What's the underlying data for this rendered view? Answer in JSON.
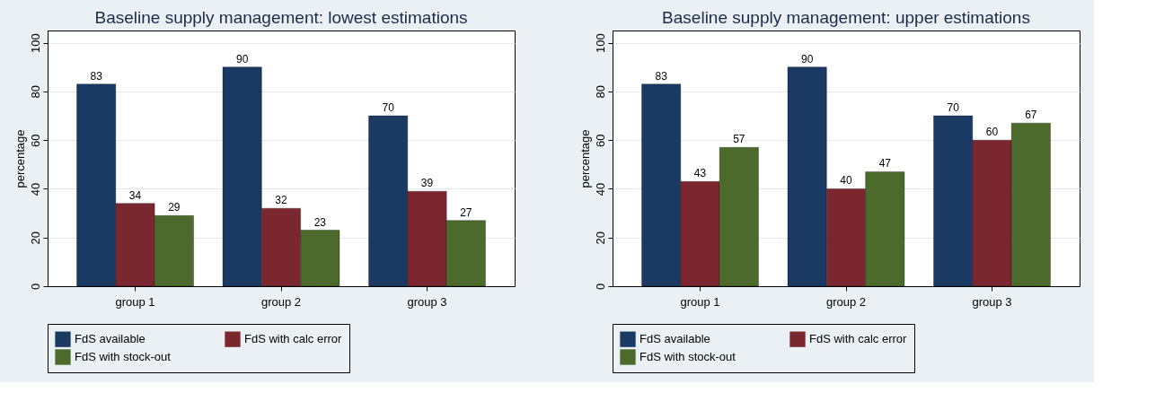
{
  "chart_data": [
    {
      "type": "bar",
      "title": "Baseline supply management: lowest estimations",
      "ylabel": "percentage",
      "categories": [
        "group 1",
        "group 2",
        "group 3"
      ],
      "series": [
        {
          "name": "FdS available",
          "color": "#1b3a63",
          "values": [
            83,
            90,
            70
          ]
        },
        {
          "name": "FdS with calc error",
          "color": "#7b2730",
          "values": [
            34,
            32,
            39
          ]
        },
        {
          "name": "FdS with stock-out",
          "color": "#4b6a2b",
          "values": [
            29,
            23,
            27
          ]
        }
      ],
      "ylim": [
        0,
        105
      ],
      "yticks": [
        0,
        20,
        40,
        60,
        80,
        100
      ],
      "grid": "y",
      "legend": "bottom",
      "data_labels": true
    },
    {
      "type": "bar",
      "title": "Baseline supply management: upper estimations",
      "ylabel": "percentage",
      "categories": [
        "group 1",
        "group 2",
        "group 3"
      ],
      "series": [
        {
          "name": "FdS available",
          "color": "#1b3a63",
          "values": [
            83,
            90,
            70
          ]
        },
        {
          "name": "FdS with calc error",
          "color": "#7b2730",
          "values": [
            43,
            40,
            60
          ]
        },
        {
          "name": "FdS with stock-out",
          "color": "#4b6a2b",
          "values": [
            57,
            47,
            67
          ]
        }
      ],
      "ylim": [
        0,
        105
      ],
      "yticks": [
        0,
        20,
        40,
        60,
        80,
        100
      ],
      "grid": "y",
      "legend": "bottom",
      "data_labels": true
    }
  ]
}
